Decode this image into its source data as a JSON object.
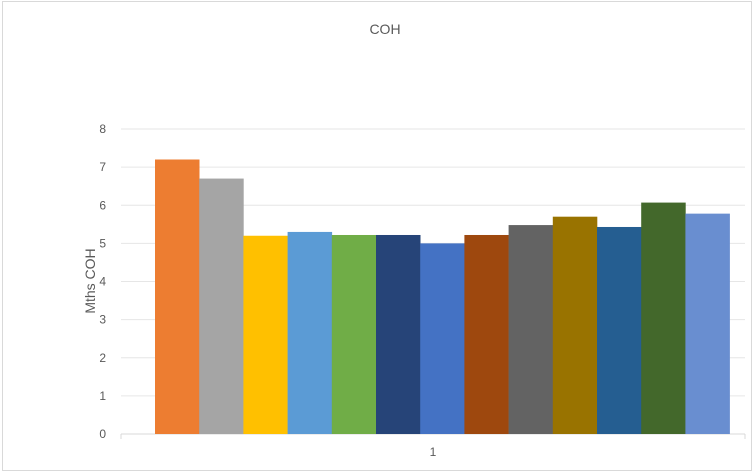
{
  "chart_data": {
    "type": "bar",
    "title": "COH",
    "ylabel": "Mths COH",
    "xlabel": "",
    "categories": [
      "1"
    ],
    "ylim": [
      0,
      8
    ],
    "yticks": [
      "0",
      "1",
      "2",
      "3",
      "4",
      "5",
      "6",
      "7",
      "8"
    ],
    "grid": true,
    "legend": "none",
    "series": [
      {
        "values": [
          7.2
        ],
        "color": "#ED7D31"
      },
      {
        "values": [
          6.7
        ],
        "color": "#A5A5A5"
      },
      {
        "values": [
          5.2
        ],
        "color": "#FFC000"
      },
      {
        "values": [
          5.3
        ],
        "color": "#5B9BD5"
      },
      {
        "values": [
          5.22
        ],
        "color": "#70AD47"
      },
      {
        "values": [
          5.22
        ],
        "color": "#264478"
      },
      {
        "values": [
          5.0
        ],
        "color": "#4472C4"
      },
      {
        "values": [
          5.22
        ],
        "color": "#9E480E"
      },
      {
        "values": [
          5.48
        ],
        "color": "#636363"
      },
      {
        "values": [
          5.7
        ],
        "color": "#997300"
      },
      {
        "values": [
          5.43
        ],
        "color": "#255E91"
      },
      {
        "values": [
          6.07
        ],
        "color": "#43682B"
      },
      {
        "values": [
          5.78
        ],
        "color": "#698ED0"
      }
    ]
  }
}
